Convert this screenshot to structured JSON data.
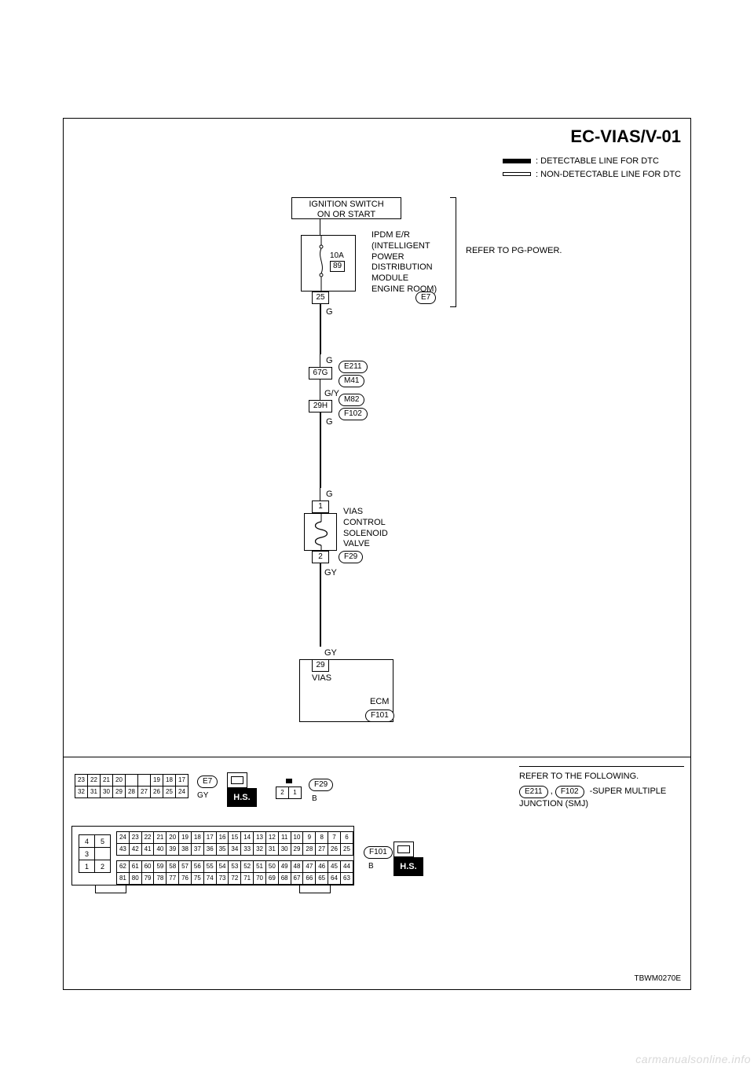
{
  "title": "EC-VIAS/V-01",
  "legend": {
    "detectable": ": DETECTABLE LINE FOR DTC",
    "non_detectable": ": NON-DETECTABLE LINE FOR DTC"
  },
  "ignition_box": "IGNITION SWITCH\nON OR START",
  "fuse": {
    "amps": "10A",
    "num": "89"
  },
  "ipdm_pin": "25",
  "ipdm_text": "IPDM E/R\n(INTELLIGENT\nPOWER\nDISTRIBUTION\nMODULE\nENGINE ROOM)",
  "ipdm_conn": "E7",
  "refer_pg": "REFER TO PG-POWER.",
  "wire_colors": {
    "g1": "G",
    "g2": "G",
    "smj1_pin": "67G",
    "smj1_conns": [
      "E211",
      "M41"
    ],
    "gy_slash": "G/Y",
    "smj2_pin": "29H",
    "smj2_conns": [
      "M82",
      "F102"
    ],
    "g3": "G",
    "g4": "G",
    "gy1": "GY",
    "gy2": "GY"
  },
  "vias_valve": {
    "pin_top": "1",
    "label": "VIAS\nCONTROL\nSOLENOID\nVALVE",
    "pin_bot": "2",
    "conn": "F29"
  },
  "ecm": {
    "pin": "29",
    "pin_label": "VIAS",
    "label": "ECM",
    "conn": "F101"
  },
  "connectors_section": {
    "e7": {
      "rows": [
        [
          "23",
          "22",
          "21",
          "20",
          "",
          "",
          "19",
          "18",
          "17"
        ],
        [
          "32",
          "31",
          "30",
          "29",
          "28",
          "27",
          "26",
          "25",
          "24"
        ]
      ],
      "conn": "E7",
      "color": "GY"
    },
    "f29": {
      "pins": [
        "2",
        "1"
      ],
      "conn": "F29",
      "color": "B"
    },
    "f101": {
      "side_rows": [
        [
          "4",
          "5"
        ],
        [
          "3",
          ""
        ],
        [
          "1",
          "2"
        ]
      ],
      "top_row": [
        "24",
        "23",
        "22",
        "21",
        "20",
        "19",
        "18",
        "17",
        "16",
        "15",
        "14",
        "13",
        "12",
        "11",
        "10",
        "9",
        "8",
        "7",
        "6"
      ],
      "row2": [
        "43",
        "42",
        "41",
        "40",
        "39",
        "38",
        "37",
        "36",
        "35",
        "34",
        "33",
        "32",
        "31",
        "30",
        "29",
        "28",
        "27",
        "26",
        "25"
      ],
      "row3": [
        "62",
        "61",
        "60",
        "59",
        "58",
        "57",
        "56",
        "55",
        "54",
        "53",
        "52",
        "51",
        "50",
        "49",
        "48",
        "47",
        "46",
        "45",
        "44"
      ],
      "row4": [
        "81",
        "80",
        "79",
        "78",
        "77",
        "76",
        "75",
        "74",
        "73",
        "72",
        "71",
        "70",
        "69",
        "68",
        "67",
        "66",
        "65",
        "64",
        "63"
      ],
      "conn": "F101",
      "color": "B"
    },
    "hs": "H.S."
  },
  "footer": {
    "title": "REFER TO THE FOLLOWING.",
    "conns": [
      "E211",
      "F102"
    ],
    "text": "-SUPER MULTIPLE\nJUNCTION (SMJ)"
  },
  "doc_id": "TBWM0270E",
  "watermark": "carmanualsonline.info"
}
